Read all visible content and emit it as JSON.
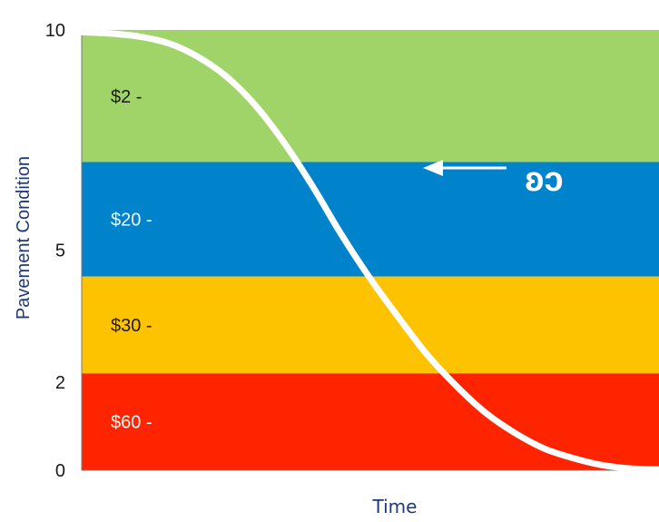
{
  "chart_data": {
    "type": "area",
    "xlabel": "Time",
    "ylabel": "Pavement Condition",
    "ylim": [
      0,
      10
    ],
    "y_ticks": [
      {
        "value": 0,
        "label": "0"
      },
      {
        "value": 2,
        "label": "2"
      },
      {
        "value": 5,
        "label": "5"
      },
      {
        "value": 10,
        "label": "10"
      }
    ],
    "bands": [
      {
        "label": "$2 -",
        "from": 7.0,
        "to": 10,
        "color": "#a1d468",
        "text_color": "#1a1a1a"
      },
      {
        "label": "$20 -",
        "from": 4.4,
        "to": 7.0,
        "color": "#0083cb",
        "text_color": "#ffffff"
      },
      {
        "label": "$30 -",
        "from": 2.2,
        "to": 4.4,
        "color": "#fdc300",
        "text_color": "#1a1a1a"
      },
      {
        "label": "$60 -",
        "from": 0,
        "to": 2.2,
        "color": "#ff2400",
        "text_color": "#ffffff"
      }
    ],
    "series": [
      {
        "x": [
          0,
          0.05,
          0.1,
          0.15,
          0.2,
          0.25,
          0.3,
          0.35,
          0.4,
          0.45,
          0.5,
          0.55,
          0.6,
          0.65,
          0.7,
          0.75,
          0.8,
          0.85,
          0.9,
          0.95,
          1.0
        ],
        "values": [
          9.95,
          9.92,
          9.85,
          9.7,
          9.4,
          8.95,
          8.3,
          7.45,
          6.45,
          5.35,
          4.35,
          3.45,
          2.6,
          1.9,
          1.3,
          0.85,
          0.5,
          0.28,
          0.12,
          0.04,
          0.02
        ],
        "color": "#ffffff"
      }
    ],
    "annotation": {
      "text": "ʚɔ",
      "arrow": "left",
      "color": "#ffffff"
    }
  }
}
